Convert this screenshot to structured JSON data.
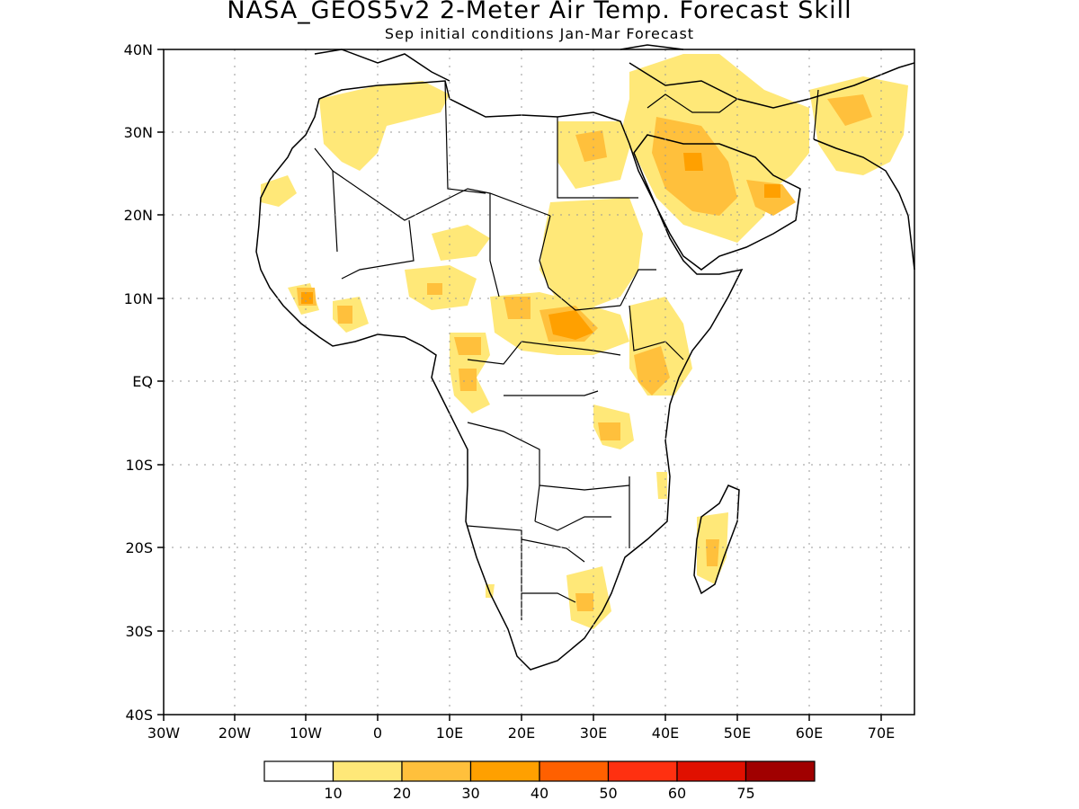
{
  "title": "NASA_GEOS5v2 2-Meter Air Temp. Forecast Skill",
  "subtitle": "Sep initial conditions  Jan-Mar Forecast",
  "map": {
    "lon_range": [
      -30,
      75
    ],
    "lat_range": [
      -40,
      40
    ],
    "x_ticks": [
      "30W",
      "20W",
      "10W",
      "0",
      "10E",
      "20E",
      "30E",
      "40E",
      "50E",
      "60E",
      "70E"
    ],
    "y_ticks": [
      "40N",
      "30N",
      "20N",
      "10N",
      "EQ",
      "10S",
      "20S",
      "30S",
      "40S"
    ],
    "grid": "dotted"
  },
  "legend": {
    "labels": [
      "10",
      "20",
      "30",
      "40",
      "50",
      "60",
      "75"
    ],
    "colors": [
      "#ffffff",
      "#ffe878",
      "#ffc03c",
      "#ffa000",
      "#ff6000",
      "#ff3010",
      "#e01000",
      "#a00000"
    ]
  },
  "colors": {
    "land_outline": "#000000",
    "skill_10_20": "#ffe878",
    "skill_20_30": "#ffc03c",
    "skill_30_40": "#ffa000"
  }
}
